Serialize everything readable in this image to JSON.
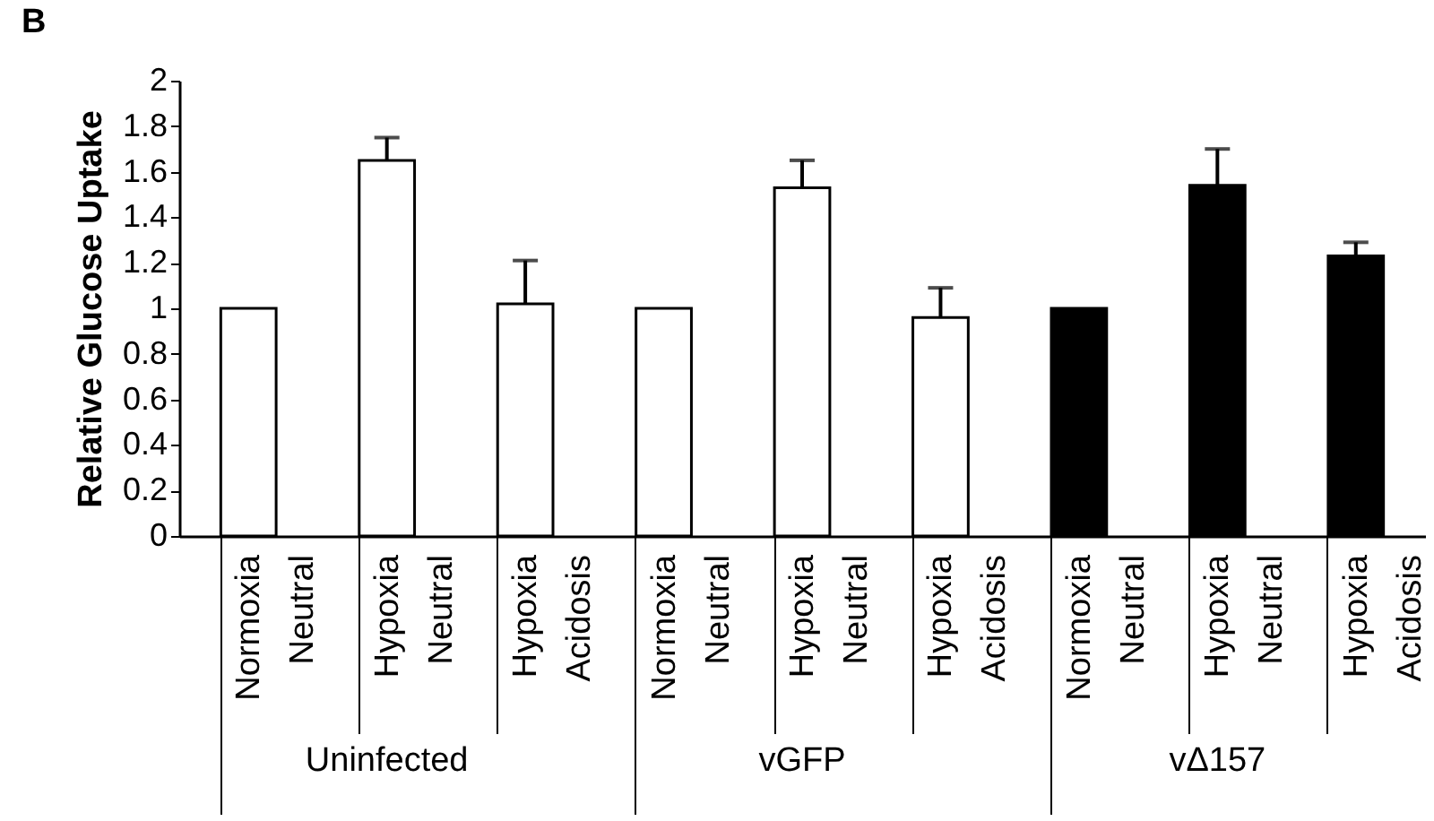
{
  "chart_data": {
    "type": "bar",
    "ylabel": "Relative Glucose Uptake",
    "categories": [
      "Normoxia Neutral",
      "Hypoxia Neutral",
      "Hypoxia Acidosis",
      "Normoxia Neutral",
      "Hypoxia Neutral",
      "Hypoxia Acidosis",
      "Normoxia Neutral",
      "Hypoxia Neutral",
      "Hypoxia Acidosis"
    ],
    "values": [
      1,
      1.65,
      1.02,
      1,
      1.53,
      0.96,
      1,
      1.54,
      1.23
    ],
    "errors": [
      null,
      [
        1.65,
        1.75
      ],
      [
        1.02,
        1.21
      ],
      null,
      [
        1.53,
        1.65
      ],
      [
        0.96,
        1.09
      ],
      null,
      [
        1.54,
        1.7
      ],
      [
        1.23,
        1.29
      ]
    ],
    "colors": [
      "#ffffff",
      "#ffffff",
      "#ffffff",
      "#ffffff",
      "#ffffff",
      "#ffffff",
      "#000000",
      "#000000",
      "#000000"
    ],
    "ylim": [
      0,
      2
    ],
    "yticks": [
      0,
      0.2,
      0.4,
      0.6,
      0.8,
      1,
      1.2,
      1.4,
      1.6,
      1.8,
      2
    ],
    "annotations": [
      "B",
      "Uninfected",
      "vGFP",
      "vΔ157"
    ],
    "grid": false
  }
}
